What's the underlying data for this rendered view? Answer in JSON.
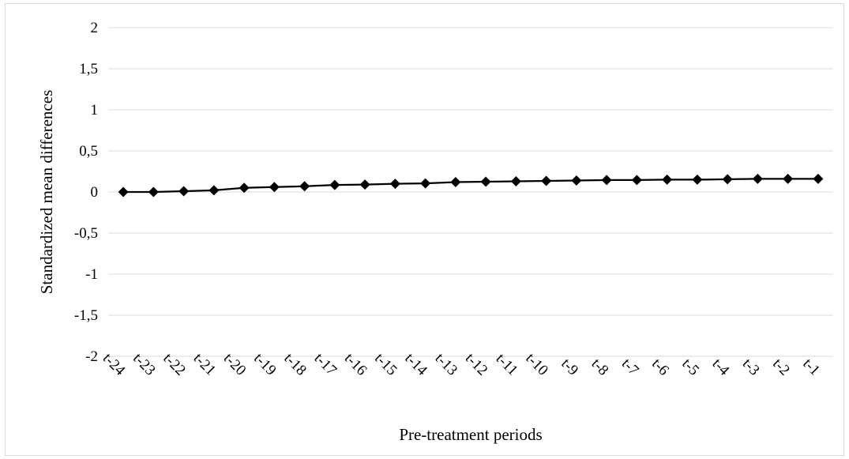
{
  "chart_data": {
    "type": "line",
    "title": "",
    "xlabel": "Pre-treatment periods",
    "ylabel": "Standardized mean differences",
    "categories": [
      "t-24",
      "t-23",
      "t-22",
      "t-21",
      "t-20",
      "t-19",
      "t-18",
      "t-17",
      "t-16",
      "t-15",
      "t-14",
      "t-13",
      "t-12",
      "t-11",
      "t-10",
      "t-9",
      "t-8",
      "t-7",
      "t-6",
      "t-5",
      "t-4",
      "t-3",
      "t-2",
      "t-1"
    ],
    "series": [
      {
        "values": [
          0.0,
          0.0,
          0.01,
          0.02,
          0.05,
          0.06,
          0.07,
          0.085,
          0.09,
          0.1,
          0.105,
          0.12,
          0.125,
          0.13,
          0.135,
          0.14,
          0.145,
          0.145,
          0.15,
          0.15,
          0.155,
          0.16,
          0.16,
          0.16
        ],
        "color": "#000000",
        "marker": "diamond"
      }
    ],
    "ylim": [
      -2,
      2
    ],
    "yticks": [
      -2,
      -1.5,
      -1,
      -0.5,
      0,
      0.5,
      1,
      1.5,
      2
    ],
    "ytick_labels": [
      "-2",
      "-1,5",
      "-1",
      "-0,5",
      "0",
      "0,5",
      "1",
      "1,5",
      "2"
    ],
    "grid": true,
    "legend": "none"
  }
}
